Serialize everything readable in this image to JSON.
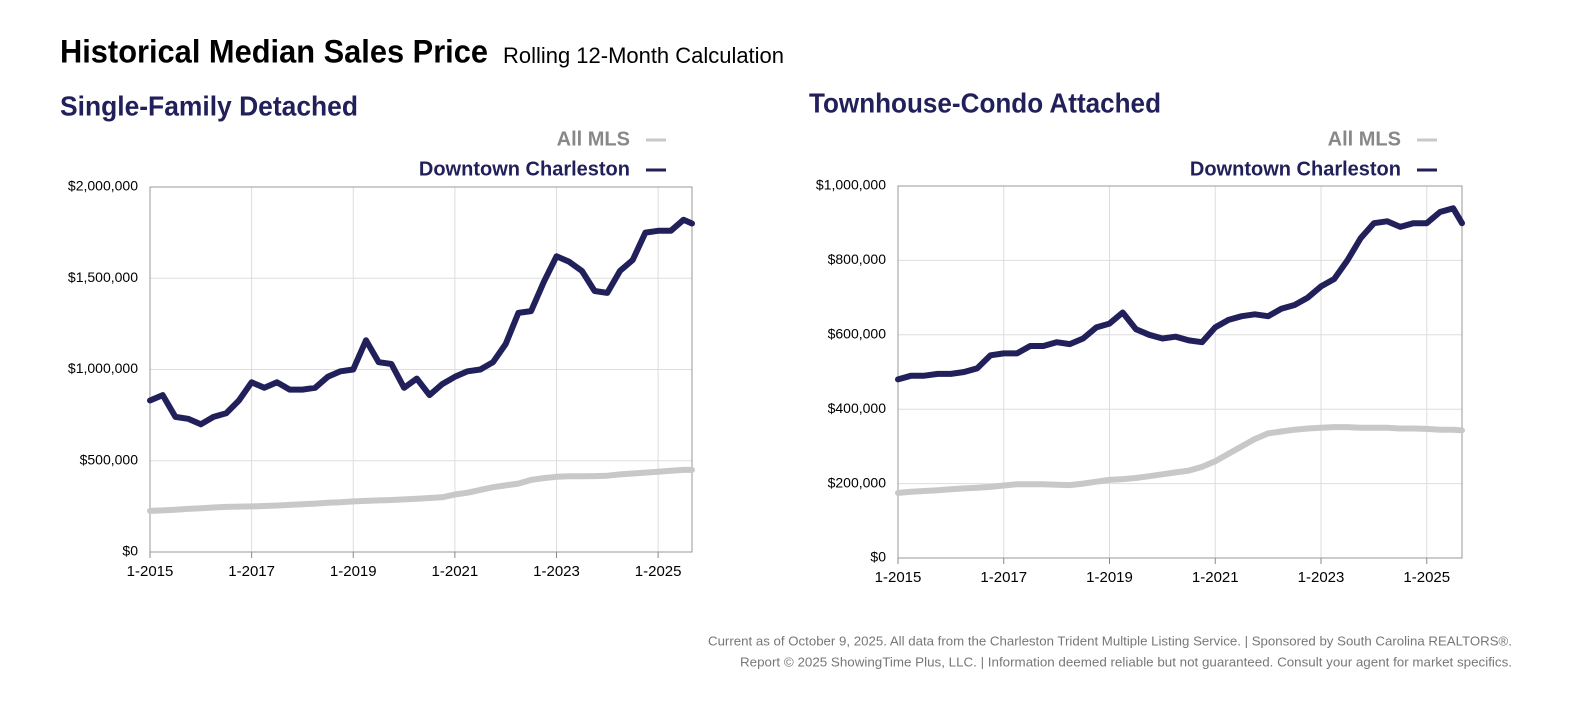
{
  "header": {
    "title": "Historical Median Sales Price",
    "subtitle": "Rolling 12-Month Calculation"
  },
  "chart_data": [
    {
      "type": "line",
      "title": "Single-Family Detached",
      "x": [
        "2015-01",
        "2015-04",
        "2015-07",
        "2015-10",
        "2016-01",
        "2016-04",
        "2016-07",
        "2016-10",
        "2017-01",
        "2017-04",
        "2017-07",
        "2017-10",
        "2018-01",
        "2018-04",
        "2018-07",
        "2018-10",
        "2019-01",
        "2019-04",
        "2019-07",
        "2019-10",
        "2020-01",
        "2020-04",
        "2020-07",
        "2020-10",
        "2021-01",
        "2021-04",
        "2021-07",
        "2021-10",
        "2022-01",
        "2022-04",
        "2022-07",
        "2022-10",
        "2023-01",
        "2023-04",
        "2023-07",
        "2023-10",
        "2024-01",
        "2024-04",
        "2024-07",
        "2024-10",
        "2025-01",
        "2025-04",
        "2025-07",
        "2025-09"
      ],
      "series": [
        {
          "name": "All MLS",
          "color": "#c8c8c8",
          "values": [
            225000,
            228000,
            232000,
            236000,
            240000,
            244000,
            247000,
            249000,
            250000,
            252000,
            255000,
            258000,
            262000,
            265000,
            270000,
            273000,
            277000,
            280000,
            283000,
            285000,
            288000,
            292000,
            296000,
            300000,
            315000,
            325000,
            340000,
            355000,
            365000,
            375000,
            395000,
            405000,
            412000,
            415000,
            415000,
            416000,
            418000,
            425000,
            430000,
            435000,
            440000,
            445000,
            450000,
            450000
          ]
        },
        {
          "name": "Downtown Charleston",
          "color": "#22205a",
          "values": [
            830000,
            860000,
            740000,
            730000,
            700000,
            740000,
            760000,
            830000,
            930000,
            900000,
            930000,
            890000,
            890000,
            900000,
            960000,
            990000,
            1000000,
            1160000,
            1040000,
            1030000,
            900000,
            950000,
            860000,
            920000,
            960000,
            990000,
            1000000,
            1040000,
            1140000,
            1310000,
            1320000,
            1480000,
            1620000,
            1590000,
            1540000,
            1430000,
            1420000,
            1540000,
            1600000,
            1750000,
            1760000,
            1760000,
            1820000,
            1800000
          ]
        }
      ],
      "xlim": [
        "2015-01",
        "2025-09"
      ],
      "xticks": [
        {
          "value": "2015-01",
          "label": "1-2015"
        },
        {
          "value": "2017-01",
          "label": "1-2017"
        },
        {
          "value": "2019-01",
          "label": "1-2019"
        },
        {
          "value": "2021-01",
          "label": "1-2021"
        },
        {
          "value": "2023-01",
          "label": "1-2023"
        },
        {
          "value": "2025-01",
          "label": "1-2025"
        }
      ],
      "ylim": [
        0,
        2000000
      ],
      "yticks": [
        {
          "value": 0,
          "label": "$0"
        },
        {
          "value": 500000,
          "label": "$500,000"
        },
        {
          "value": 1000000,
          "label": "$1,000,000"
        },
        {
          "value": 1500000,
          "label": "$1,500,000"
        },
        {
          "value": 2000000,
          "label": "$2,000,000"
        }
      ],
      "grid": true
    },
    {
      "type": "line",
      "title": "Townhouse-Condo Attached",
      "x": [
        "2015-01",
        "2015-04",
        "2015-07",
        "2015-10",
        "2016-01",
        "2016-04",
        "2016-07",
        "2016-10",
        "2017-01",
        "2017-04",
        "2017-07",
        "2017-10",
        "2018-01",
        "2018-04",
        "2018-07",
        "2018-10",
        "2019-01",
        "2019-04",
        "2019-07",
        "2019-10",
        "2020-01",
        "2020-04",
        "2020-07",
        "2020-10",
        "2021-01",
        "2021-04",
        "2021-07",
        "2021-10",
        "2022-01",
        "2022-04",
        "2022-07",
        "2022-10",
        "2023-01",
        "2023-04",
        "2023-07",
        "2023-10",
        "2024-01",
        "2024-04",
        "2024-07",
        "2024-10",
        "2025-01",
        "2025-04",
        "2025-07",
        "2025-09"
      ],
      "series": [
        {
          "name": "All MLS",
          "color": "#c8c8c8",
          "values": [
            175000,
            178000,
            180000,
            182000,
            185000,
            187000,
            189000,
            191000,
            195000,
            198000,
            198000,
            198000,
            197000,
            196000,
            200000,
            205000,
            210000,
            212000,
            215000,
            220000,
            225000,
            230000,
            235000,
            245000,
            260000,
            280000,
            300000,
            320000,
            335000,
            340000,
            345000,
            348000,
            350000,
            352000,
            352000,
            350000,
            350000,
            350000,
            348000,
            348000,
            347000,
            345000,
            345000,
            343000
          ]
        },
        {
          "name": "Downtown Charleston",
          "color": "#22205a",
          "values": [
            480000,
            490000,
            490000,
            495000,
            495000,
            500000,
            510000,
            545000,
            550000,
            550000,
            570000,
            570000,
            580000,
            575000,
            590000,
            620000,
            630000,
            660000,
            615000,
            600000,
            590000,
            595000,
            585000,
            580000,
            620000,
            640000,
            650000,
            655000,
            650000,
            670000,
            680000,
            700000,
            730000,
            750000,
            800000,
            860000,
            900000,
            905000,
            890000,
            900000,
            900000,
            930000,
            940000,
            900000
          ]
        }
      ],
      "xlim": [
        "2015-01",
        "2025-09"
      ],
      "xticks": [
        {
          "value": "2015-01",
          "label": "1-2015"
        },
        {
          "value": "2017-01",
          "label": "1-2017"
        },
        {
          "value": "2019-01",
          "label": "1-2019"
        },
        {
          "value": "2021-01",
          "label": "1-2021"
        },
        {
          "value": "2023-01",
          "label": "1-2023"
        },
        {
          "value": "2025-01",
          "label": "1-2025"
        }
      ],
      "ylim": [
        0,
        1000000
      ],
      "yticks": [
        {
          "value": 0,
          "label": "$0"
        },
        {
          "value": 200000,
          "label": "$200,000"
        },
        {
          "value": 400000,
          "label": "$400,000"
        },
        {
          "value": 600000,
          "label": "$600,000"
        },
        {
          "value": 800000,
          "label": "$800,000"
        },
        {
          "value": 1000000,
          "label": "$1,000,000"
        }
      ],
      "grid": true
    }
  ],
  "footer": {
    "lines": [
      "Current as of October 9, 2025. All data from the Charleston Trident Multiple Listing Service.  |  Sponsored by South Carolina REALTORS®.",
      "Report © 2025 ShowingTime Plus, LLC.  |  Information deemed reliable but not guaranteed. Consult your agent for market specifics."
    ]
  }
}
